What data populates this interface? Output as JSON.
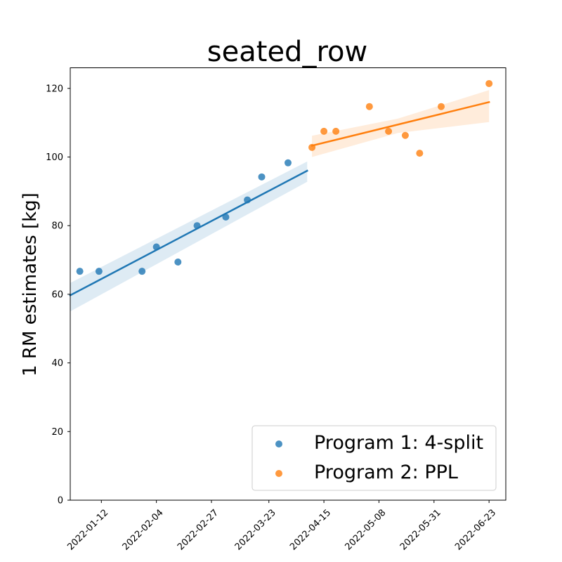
{
  "chart_data": {
    "type": "scatter",
    "title": "seated_row",
    "xlabel": "",
    "ylabel": "1 RM estimates [kg]",
    "x_axis_type": "date",
    "xlim": [
      "2021-12-30",
      "2022-06-30"
    ],
    "ylim": [
      0,
      126
    ],
    "x_ticks": [
      "2022-01-12",
      "2022-02-04",
      "2022-02-27",
      "2022-03-23",
      "2022-04-15",
      "2022-05-08",
      "2022-05-31",
      "2022-06-23"
    ],
    "y_ticks": [
      0,
      20,
      40,
      60,
      80,
      100,
      120
    ],
    "grid": false,
    "legend_position": "lower-right",
    "series": [
      {
        "name": "Program 1: 4-split",
        "color": "#1f77b4",
        "points": [
          {
            "x": "2022-01-03",
            "y": 66.7
          },
          {
            "x": "2022-01-11",
            "y": 66.7
          },
          {
            "x": "2022-01-29",
            "y": 66.7
          },
          {
            "x": "2022-02-04",
            "y": 73.8
          },
          {
            "x": "2022-02-13",
            "y": 69.4
          },
          {
            "x": "2022-02-21",
            "y": 80.0
          },
          {
            "x": "2022-03-05",
            "y": 82.5
          },
          {
            "x": "2022-03-14",
            "y": 87.5
          },
          {
            "x": "2022-03-20",
            "y": 94.2
          },
          {
            "x": "2022-03-31",
            "y": 98.3
          }
        ],
        "trend": {
          "start": [
            "2021-12-30",
            59.7
          ],
          "end": [
            "2022-04-08",
            96.0
          ]
        },
        "ci_band": {
          "x": [
            "2021-12-30",
            "2022-04-08"
          ],
          "lower": [
            55.0,
            92.8
          ],
          "upper": [
            63.3,
            98.7
          ]
        }
      },
      {
        "name": "Program 2: PPL",
        "color": "#ff7f0e",
        "points": [
          {
            "x": "2022-04-10",
            "y": 102.8
          },
          {
            "x": "2022-04-15",
            "y": 107.5
          },
          {
            "x": "2022-04-20",
            "y": 107.5
          },
          {
            "x": "2022-05-04",
            "y": 114.7
          },
          {
            "x": "2022-05-12",
            "y": 107.5
          },
          {
            "x": "2022-05-19",
            "y": 106.3
          },
          {
            "x": "2022-05-25",
            "y": 101.1
          },
          {
            "x": "2022-06-03",
            "y": 114.7
          },
          {
            "x": "2022-06-23",
            "y": 121.4
          }
        ],
        "trend": {
          "start": [
            "2022-04-10",
            103.3
          ],
          "end": [
            "2022-06-23",
            116.0
          ]
        },
        "ci_band": {
          "x": [
            "2022-04-10",
            "2022-05-16",
            "2022-06-23"
          ],
          "lower": [
            100.0,
            107.0,
            110.2
          ],
          "upper": [
            106.2,
            111.2,
            119.5
          ]
        }
      }
    ]
  }
}
